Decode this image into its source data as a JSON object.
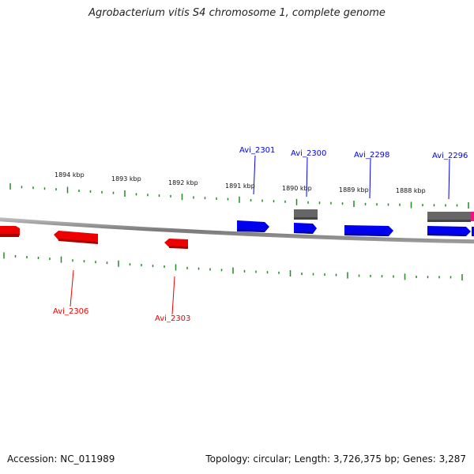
{
  "header": {
    "title": "Agrobacterium vitis S4 chromosome 1, complete genome"
  },
  "footer": {
    "accession": "Accession: NC_011989",
    "summary": "Topology: circular; Length: 3,726,375 bp; Genes: 3,287"
  },
  "colors": {
    "forward_gene": "#0000ee",
    "reverse_gene": "#ee0000",
    "other_feature": "#666666",
    "highlight_feature": "#ee1188",
    "tick": "#228b22",
    "backbone": "#888888"
  },
  "scale_labels": [
    "1894 kbp",
    "1893 kbp",
    "1892 kbp",
    "1891 kbp",
    "1890 kbp",
    "1889 kbp",
    "1888 kbp"
  ],
  "forward_gene_labels": [
    "Avi_2301",
    "Avi_2300",
    "Avi_2298",
    "Avi_2296"
  ],
  "reverse_gene_labels": [
    "Avi_2306",
    "Avi_2303"
  ]
}
